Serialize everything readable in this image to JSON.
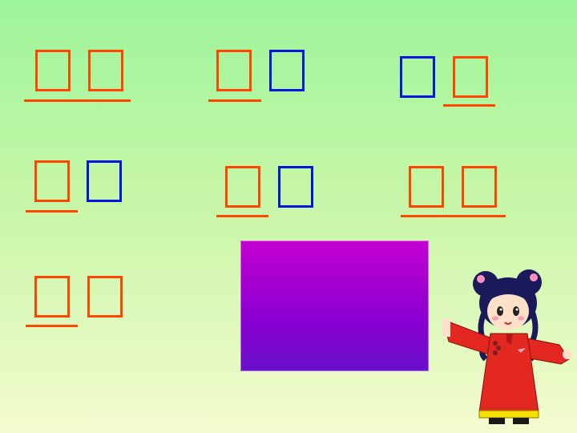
{
  "words": [
    {
      "id": "w1",
      "chars": [
        "",
        ""
      ],
      "colors": [
        "#ff4500",
        "#ff4500"
      ]
    },
    {
      "id": "w2",
      "chars": [
        "",
        ""
      ],
      "colors": [
        "#ff4500",
        "#0016e0"
      ]
    },
    {
      "id": "w3",
      "chars": [
        "",
        ""
      ],
      "colors": [
        "#0016e0",
        "#ff4500"
      ]
    },
    {
      "id": "w4",
      "chars": [
        "",
        ""
      ],
      "colors": [
        "#ff4500",
        "#0016e0"
      ]
    },
    {
      "id": "w5",
      "chars": [
        "",
        ""
      ],
      "colors": [
        "#ff4500",
        "#0016e0"
      ]
    },
    {
      "id": "w6",
      "chars": [
        "",
        ""
      ],
      "colors": [
        "#ff4500",
        "#ff4500"
      ]
    },
    {
      "id": "w7",
      "chars": [
        "",
        ""
      ],
      "colors": [
        "#ff4500",
        "#ff4500"
      ]
    }
  ],
  "colors": {
    "accent_red": "#ff4500",
    "accent_blue": "#0016e0",
    "panel": "#a000d0"
  },
  "icons": {
    "character": "girl-in-red-qipao-icon"
  }
}
